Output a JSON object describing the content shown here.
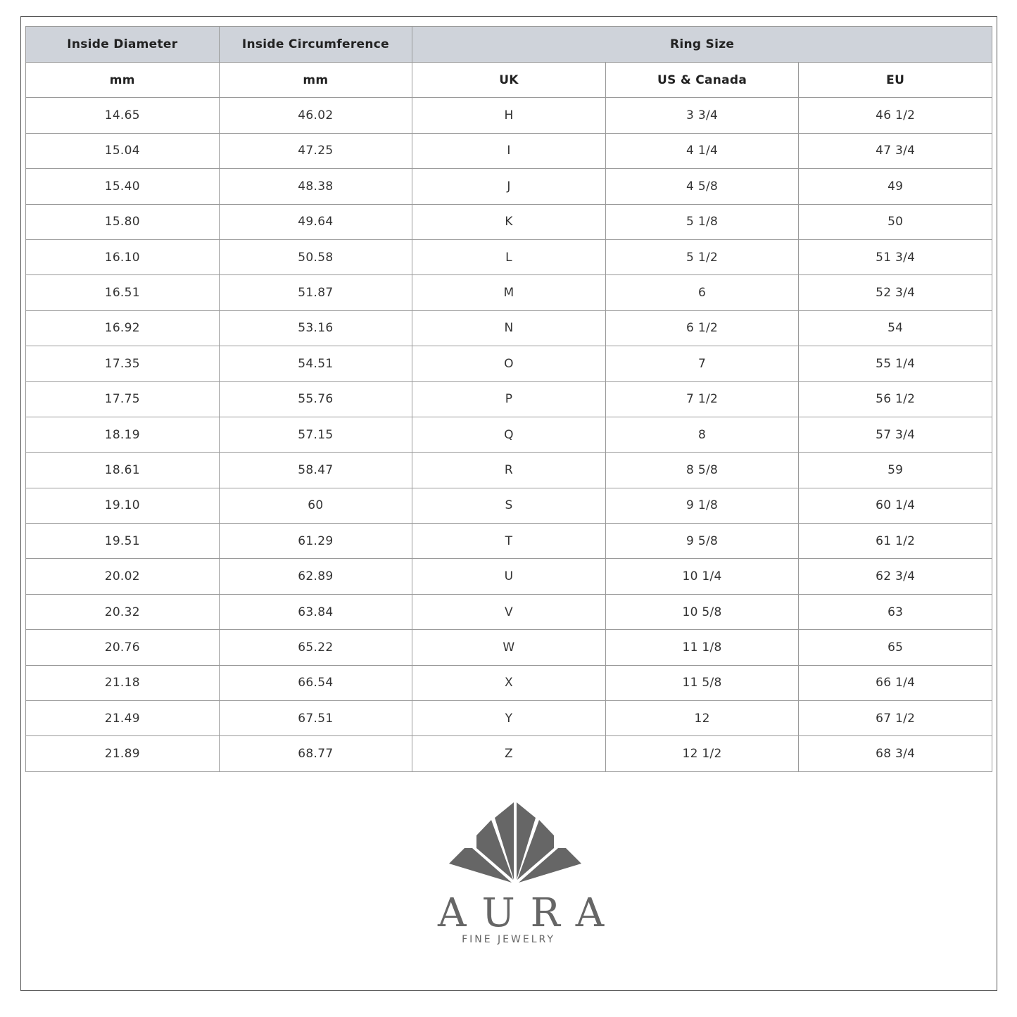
{
  "header": {
    "inside_diameter": "Inside Diameter",
    "inside_circumference": "Inside Circumference",
    "ring_size": "Ring Size"
  },
  "units": [
    "mm",
    "mm",
    "UK",
    "US & Canada",
    "EU"
  ],
  "rows": [
    [
      "14.65",
      "46.02",
      "H",
      "3 3/4",
      "46 1/2"
    ],
    [
      "15.04",
      "47.25",
      "I",
      "4 1/4",
      "47 3/4"
    ],
    [
      "15.40",
      "48.38",
      "J",
      "4 5/8",
      "49"
    ],
    [
      "15.80",
      "49.64",
      "K",
      "5 1/8",
      "50"
    ],
    [
      "16.10",
      "50.58",
      "L",
      "5 1/2",
      "51 3/4"
    ],
    [
      "16.51",
      "51.87",
      "M",
      "6",
      "52 3/4"
    ],
    [
      "16.92",
      "53.16",
      "N",
      "6 1/2",
      "54"
    ],
    [
      "17.35",
      "54.51",
      "O",
      "7",
      "55 1/4"
    ],
    [
      "17.75",
      "55.76",
      "P",
      "7 1/2",
      "56 1/2"
    ],
    [
      "18.19",
      "57.15",
      "Q",
      "8",
      "57 3/4"
    ],
    [
      "18.61",
      "58.47",
      "R",
      "8 5/8",
      "59"
    ],
    [
      "19.10",
      "60",
      "S",
      "9 1/8",
      "60 1/4"
    ],
    [
      "19.51",
      "61.29",
      "T",
      "9 5/8",
      "61 1/2"
    ],
    [
      "20.02",
      "62.89",
      "U",
      "10 1/4",
      "62 3/4"
    ],
    [
      "20.32",
      "63.84",
      "V",
      "10 5/8",
      "63"
    ],
    [
      "20.76",
      "65.22",
      "W",
      "11 1/8",
      "65"
    ],
    [
      "21.18",
      "66.54",
      "X",
      "11 5/8",
      "66 1/4"
    ],
    [
      "21.49",
      "67.51",
      "Y",
      "12",
      "67 1/2"
    ],
    [
      "21.89",
      "68.77",
      "Z",
      "12 1/2",
      "68 3/4"
    ]
  ],
  "logo": {
    "brand": "AURA",
    "tagline": "FINE JEWELRY",
    "color": "#666666"
  },
  "colors": {
    "header_bg": "#cfd3da",
    "border": "#9a9a9a"
  }
}
